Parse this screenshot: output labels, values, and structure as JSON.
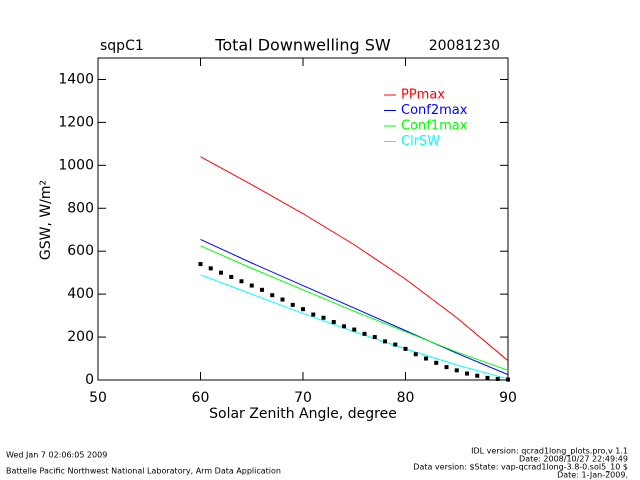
{
  "chart_data": {
    "type": "line",
    "title": "Total Downwelling SW",
    "site": "sqpC1",
    "date": "20081230",
    "xlabel": "Solar Zenith Angle, degree",
    "ylabel": "GSW, W/m²",
    "xlim": [
      50,
      90
    ],
    "xticks": [
      50,
      60,
      70,
      80,
      90
    ],
    "ylim": [
      0,
      1500
    ],
    "yticks": [
      0,
      200,
      400,
      600,
      800,
      1000,
      1200,
      1400
    ],
    "legend": "upper right",
    "series": [
      {
        "name": "PPmax",
        "color": "#ff0000",
        "x": [
          60,
          65,
          70,
          75,
          80,
          85,
          90
        ],
        "values": [
          1040,
          910,
          775,
          630,
          470,
          290,
          90
        ]
      },
      {
        "name": "Conf2max",
        "color": "#0000ff",
        "x": [
          60,
          65,
          70,
          75,
          80,
          85,
          90
        ],
        "values": [
          655,
          545,
          440,
          335,
          230,
          125,
          25
        ]
      },
      {
        "name": "Conf1max",
        "color": "#00ff00",
        "x": [
          60,
          65,
          70,
          75,
          80,
          85,
          90
        ],
        "values": [
          625,
          520,
          420,
          320,
          225,
          130,
          45
        ]
      },
      {
        "name": "ClrSW",
        "color": "#00ffff",
        "x": [
          60,
          65,
          70,
          75,
          80,
          85,
          90
        ],
        "values": [
          490,
          400,
          310,
          225,
          145,
          70,
          5
        ]
      },
      {
        "color": "#000000",
        "mode": "markers",
        "x": [
          60,
          61,
          62,
          63,
          64,
          65,
          66,
          67,
          68,
          69,
          70,
          71,
          72,
          73,
          74,
          75,
          76,
          77,
          78,
          79,
          80,
          81,
          82,
          83,
          84,
          85,
          86,
          87,
          88,
          89,
          90
        ],
        "values": [
          540,
          520,
          500,
          480,
          460,
          440,
          420,
          395,
          375,
          350,
          330,
          305,
          290,
          270,
          250,
          235,
          215,
          200,
          180,
          165,
          145,
          120,
          100,
          80,
          60,
          45,
          30,
          20,
          10,
          5,
          2
        ]
      }
    ],
    "footer_left": [
      "Wed Jan  7 02:06:05 2009",
      "Battelle Pacific Northwest National Laboratory, Arm Data Application"
    ],
    "footer_right": [
      "IDL version: qcrad1long_plots.pro,v 1.1",
      "Date: 2008/10/27 22:49:49",
      "Data version: $State: vap-qcrad1long-3.8-0.sol5_10 $",
      "Date: 1-Jan-2009,"
    ]
  }
}
